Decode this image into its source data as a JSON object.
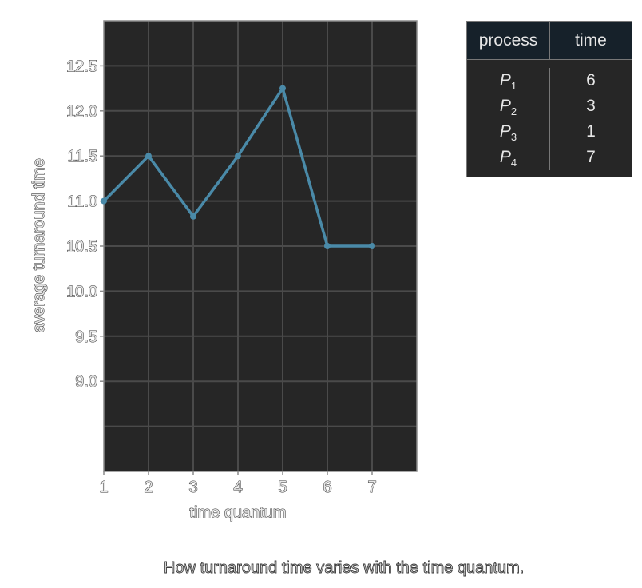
{
  "chart_data": {
    "type": "line",
    "x": [
      1,
      2,
      3,
      4,
      5,
      6,
      7
    ],
    "series": [
      {
        "values": [
          11.0,
          11.5,
          10.83,
          11.5,
          12.25,
          10.5,
          10.5
        ]
      }
    ],
    "xlabel": "time quantum",
    "ylabel": "average turnaround time",
    "xlim": [
      1,
      8
    ],
    "ylim": [
      8.0,
      13.0
    ],
    "x_ticks": [
      "1",
      "2",
      "3",
      "4",
      "5",
      "6",
      "7"
    ],
    "y_ticks": [
      "9.0",
      "9.5",
      "10.0",
      "10.5",
      "11.0",
      "11.5",
      "12.0",
      "12.5"
    ],
    "grid": true,
    "colors": {
      "line": "#4a8aa8",
      "background": "#262626",
      "grid": "#4a4a4a",
      "frame": "#8a8a8a"
    }
  },
  "table": {
    "headers": [
      "process",
      "time"
    ],
    "rows": [
      {
        "name": "P",
        "sub": "1",
        "time": "6"
      },
      {
        "name": "P",
        "sub": "2",
        "time": "3"
      },
      {
        "name": "P",
        "sub": "3",
        "time": "1"
      },
      {
        "name": "P",
        "sub": "4",
        "time": "7"
      }
    ]
  },
  "caption": "How turnaround time varies with the time quantum."
}
